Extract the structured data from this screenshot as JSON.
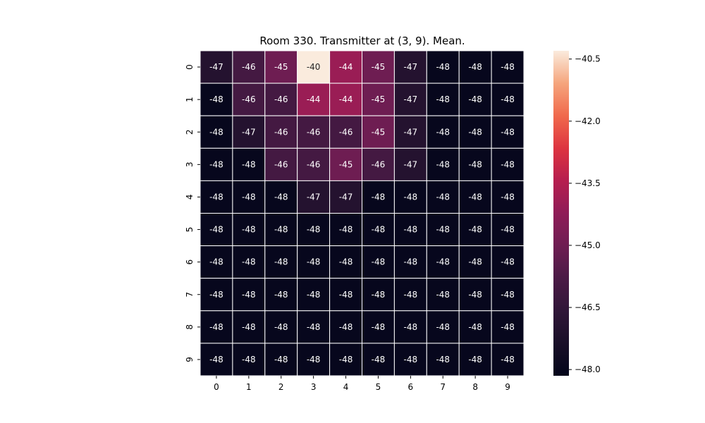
{
  "chart_data": {
    "type": "heatmap",
    "title": "Room 330. Transmitter at (3, 9). Mean.",
    "x_ticks": [
      "0",
      "1",
      "2",
      "3",
      "4",
      "5",
      "6",
      "7",
      "8",
      "9"
    ],
    "y_ticks": [
      "0",
      "1",
      "2",
      "3",
      "4",
      "5",
      "6",
      "7",
      "8",
      "9"
    ],
    "values": [
      [
        -47,
        -46,
        -45,
        -40,
        -44,
        -45,
        -47,
        -48,
        -48,
        -48
      ],
      [
        -48,
        -46,
        -46,
        -44,
        -44,
        -45,
        -47,
        -48,
        -48,
        -48
      ],
      [
        -48,
        -47,
        -46,
        -46,
        -46,
        -45,
        -47,
        -48,
        -48,
        -48
      ],
      [
        -48,
        -48,
        -46,
        -46,
        -45,
        -46,
        -47,
        -48,
        -48,
        -48
      ],
      [
        -48,
        -48,
        -48,
        -47,
        -47,
        -48,
        -48,
        -48,
        -48,
        -48
      ],
      [
        -48,
        -48,
        -48,
        -48,
        -48,
        -48,
        -48,
        -48,
        -48,
        -48
      ],
      [
        -48,
        -48,
        -48,
        -48,
        -48,
        -48,
        -48,
        -48,
        -48,
        -48
      ],
      [
        -48,
        -48,
        -48,
        -48,
        -48,
        -48,
        -48,
        -48,
        -48,
        -48
      ],
      [
        -48,
        -48,
        -48,
        -48,
        -48,
        -48,
        -48,
        -48,
        -48,
        -48
      ],
      [
        -48,
        -48,
        -48,
        -48,
        -48,
        -48,
        -48,
        -48,
        -48,
        -48
      ]
    ],
    "colorbar": {
      "range": [
        -48.15,
        -40.3
      ],
      "ticks": [
        -48.0,
        -46.5,
        -45.0,
        -43.5,
        -42.0,
        -40.5
      ],
      "tick_labels": [
        "−48.0",
        "−46.5",
        "−45.0",
        "−43.5",
        "−42.0",
        "−40.5"
      ],
      "colormap": "rocket"
    },
    "grid": true,
    "legend": "colorbar-right"
  }
}
